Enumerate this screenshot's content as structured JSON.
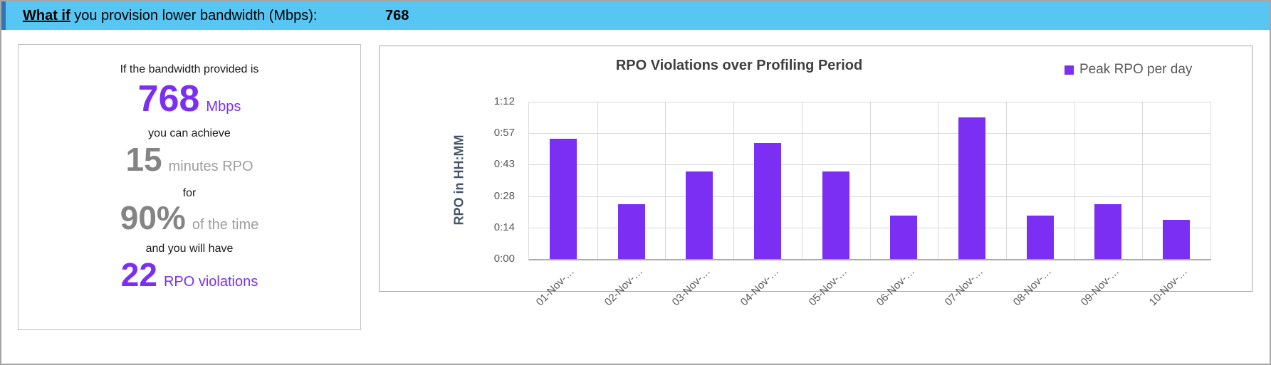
{
  "header": {
    "what_if": "What if",
    "question_rest": " you provision lower bandwidth (Mbps):",
    "bandwidth_input_value": "768"
  },
  "summary_card": {
    "line1": "If the bandwidth provided is",
    "bandwidth_value": "768",
    "bandwidth_unit": "Mbps",
    "line2": "you can achieve",
    "rpo_value": "15",
    "rpo_unit": "minutes RPO",
    "line3": "for",
    "percent_value": "90%",
    "percent_unit": "of the time",
    "line4": "and you will have",
    "violations_value": "22",
    "violations_unit": "RPO violations"
  },
  "chart_data": {
    "type": "bar",
    "title": "RPO Violations over Profiling Period",
    "ylabel": "RPO in HH:MM",
    "xlabel": "",
    "legend": [
      "Peak RPO per day"
    ],
    "legend_position": "top-right",
    "grid": true,
    "categories": [
      "01-Nov-…",
      "02-Nov-…",
      "03-Nov-…",
      "04-Nov-…",
      "05-Nov-…",
      "06-Nov-…",
      "07-Nov-…",
      "08-Nov-…",
      "09-Nov-…",
      "10-Nov-…"
    ],
    "values_minutes": [
      55,
      25,
      40,
      53,
      40,
      20,
      65,
      20,
      25,
      18
    ],
    "values_hhmm": [
      "0:55",
      "0:25",
      "0:40",
      "0:53",
      "0:40",
      "0:20",
      "1:05",
      "0:20",
      "0:25",
      "0:18"
    ],
    "y_ticks": [
      "0:00",
      "0:14",
      "0:28",
      "0:43",
      "0:57",
      "1:12"
    ],
    "y_ticks_minutes": [
      0,
      14.4,
      28.8,
      43.2,
      57.6,
      72
    ],
    "ylim_minutes": [
      0,
      72
    ]
  },
  "colors": {
    "bar_purple": "#7b2ff2",
    "summary_gray": "#848484",
    "header_cyan": "#57c6f2",
    "header_accent_blue": "#2e75b6",
    "axis_title_blue": "#44546a",
    "tick_gray": "#595959",
    "gridline_gray": "#d9d9d9"
  }
}
